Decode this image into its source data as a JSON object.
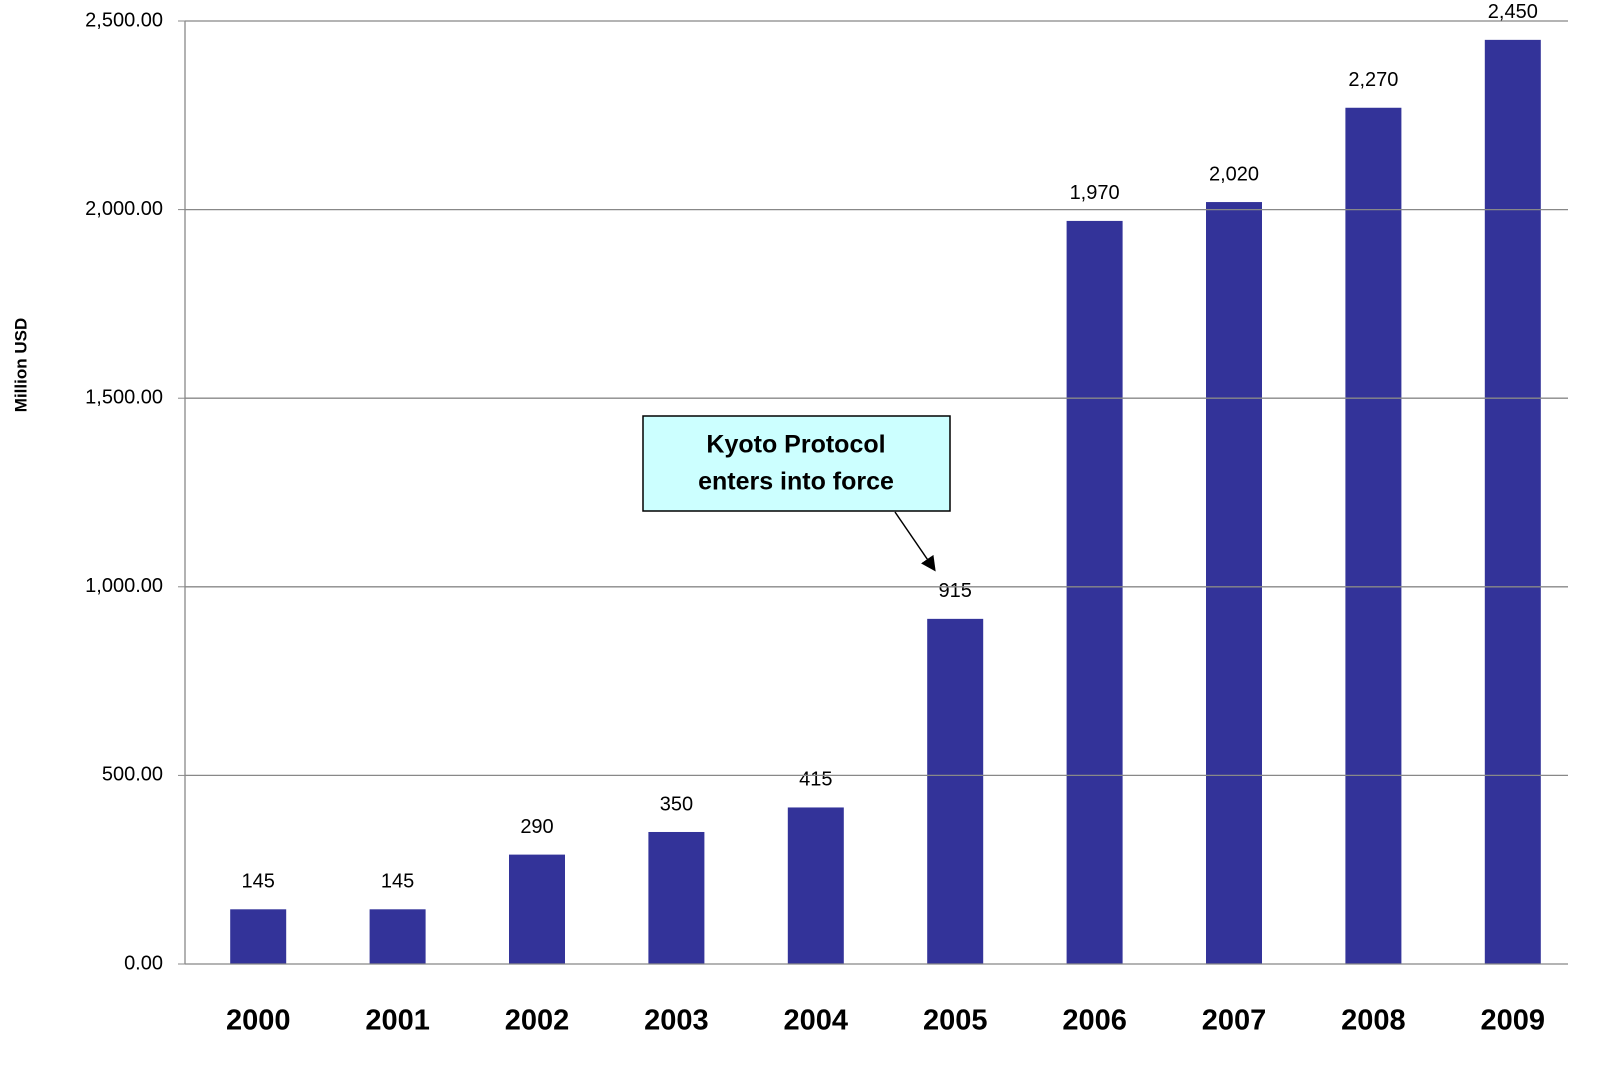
{
  "chart_data": {
    "type": "bar",
    "y_label": "Million USD",
    "categories": [
      "2000",
      "2001",
      "2002",
      "2003",
      "2004",
      "2005",
      "2006",
      "2007",
      "2008",
      "2009"
    ],
    "values": [
      145,
      145,
      290,
      350,
      415,
      915,
      1970,
      2020,
      2270,
      2450
    ],
    "value_labels": [
      "145",
      "145",
      "290",
      "350",
      "415",
      "915",
      "1,970",
      "2,020",
      "2,270",
      "2,450"
    ],
    "color": "#333399",
    "ylim": [
      0,
      2500
    ],
    "yticks": [
      {
        "value": 0,
        "label": "0.00"
      },
      {
        "value": 500,
        "label": "500.00"
      },
      {
        "value": 1000,
        "label": "1,000.00"
      },
      {
        "value": 1500,
        "label": "1,500.00"
      },
      {
        "value": 2000,
        "label": "2,000.00"
      },
      {
        "value": 2500,
        "label": "2,500.00"
      }
    ],
    "grid": true,
    "annotation": {
      "lines": [
        "Kyoto Protocol",
        "enters into force"
      ],
      "category": "2005"
    }
  }
}
